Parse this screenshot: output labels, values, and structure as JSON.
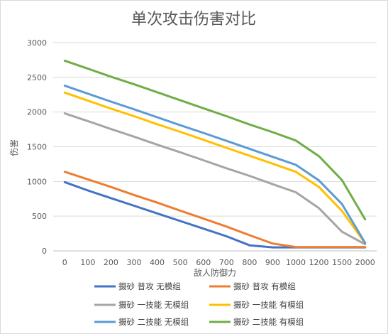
{
  "chart_data": {
    "type": "line",
    "title": "单次攻击伤害对比",
    "xlabel": "敌人防御力",
    "ylabel": "伤害",
    "x": [
      "0",
      "100",
      "200",
      "300",
      "400",
      "500",
      "600",
      "700",
      "800",
      "900",
      "1000",
      "1200",
      "1500",
      "2000"
    ],
    "ylim": [
      0,
      3000
    ],
    "yticks": [
      "0",
      "500",
      "1000",
      "1500",
      "2000",
      "2500",
      "3000"
    ],
    "grid": true,
    "legend_position": "bottom",
    "series": [
      {
        "name": "摄砂 普攻 无模组",
        "color": "#4472c4",
        "values": [
          990,
          870,
          760,
          650,
          540,
          430,
          320,
          210,
          80,
          50,
          50,
          50,
          50,
          50
        ]
      },
      {
        "name": "摄砂 普攻 有模组",
        "color": "#ed7d31",
        "values": [
          1140,
          1030,
          920,
          805,
          695,
          580,
          465,
          350,
          225,
          105,
          55,
          55,
          55,
          55
        ]
      },
      {
        "name": "摄砂 一技能 无模组",
        "color": "#a5a5a5",
        "values": [
          1980,
          1870,
          1755,
          1645,
          1530,
          1420,
          1305,
          1190,
          1080,
          960,
          845,
          615,
          275,
          95
        ]
      },
      {
        "name": "摄砂 一技能 有模组",
        "color": "#ffc000",
        "values": [
          2280,
          2165,
          2050,
          1940,
          1825,
          1715,
          1600,
          1485,
          1370,
          1255,
          1140,
          920,
          575,
          110
        ]
      },
      {
        "name": "摄砂 二技能 无模组",
        "color": "#5b9bd5",
        "values": [
          2380,
          2265,
          2150,
          2040,
          1925,
          1810,
          1700,
          1585,
          1470,
          1355,
          1240,
          1015,
          675,
          115
        ]
      },
      {
        "name": "摄砂 二技能 有模组",
        "color": "#70ad47",
        "values": [
          2740,
          2625,
          2510,
          2400,
          2285,
          2170,
          2055,
          1940,
          1820,
          1710,
          1590,
          1365,
          1020,
          455
        ]
      }
    ]
  }
}
